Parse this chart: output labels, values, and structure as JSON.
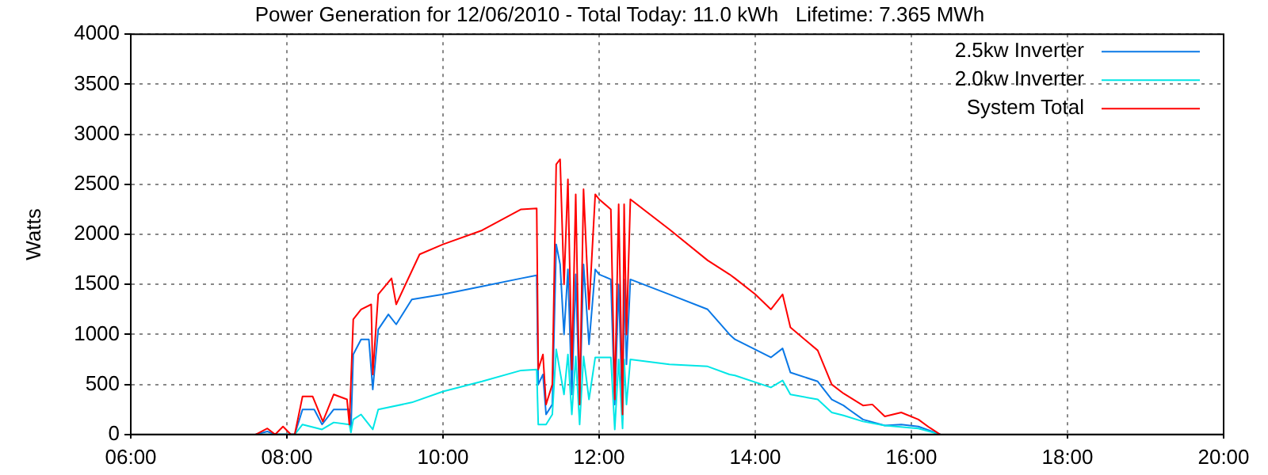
{
  "chart_data": {
    "type": "line",
    "title": "Power Generation for 12/06/2010 - Total Today: 11.0 kWh   Lifetime: 7.365 MWh",
    "ylabel": "Watts",
    "xlim": [
      6,
      20
    ],
    "xticks": [
      {
        "value": 6,
        "label": "06:00"
      },
      {
        "value": 8,
        "label": "08:00"
      },
      {
        "value": 10,
        "label": "10:00"
      },
      {
        "value": 12,
        "label": "12:00"
      },
      {
        "value": 14,
        "label": "14:00"
      },
      {
        "value": 16,
        "label": "16:00"
      },
      {
        "value": 18,
        "label": "18:00"
      },
      {
        "value": 20,
        "label": "20:00"
      }
    ],
    "ylim": [
      0,
      4000
    ],
    "yticks": [
      0,
      500,
      1000,
      1500,
      2000,
      2500,
      3000,
      3500,
      4000
    ],
    "grid": true,
    "legend": "top right",
    "marker": "none",
    "line_style": "solid",
    "series": [
      {
        "name": "2.5kw Inverter",
        "color": "#0a78e6",
        "x": [
          7.6,
          7.75,
          7.85,
          8.1,
          8.2,
          8.35,
          8.45,
          8.6,
          8.8,
          8.82,
          8.85,
          8.95,
          9.05,
          9.1,
          9.17,
          9.3,
          9.4,
          9.6,
          10.0,
          10.5,
          11.0,
          11.2,
          11.22,
          11.28,
          11.32,
          11.4,
          11.45,
          11.5,
          11.55,
          11.6,
          11.65,
          11.7,
          11.75,
          11.8,
          11.87,
          11.95,
          12.0,
          12.15,
          12.2,
          12.25,
          12.3,
          12.32,
          12.35,
          12.4,
          12.9,
          13.39,
          13.67,
          13.74,
          14.2,
          14.35,
          14.45,
          14.8,
          14.98,
          15.13,
          15.2,
          15.38,
          15.66,
          15.87,
          16.09,
          16.23,
          16.37
        ],
        "values": [
          0,
          30,
          0,
          0,
          250,
          250,
          100,
          250,
          250,
          50,
          800,
          950,
          950,
          450,
          1050,
          1200,
          1100,
          1350,
          1400,
          1480,
          1560,
          1590,
          500,
          600,
          200,
          300,
          1900,
          1700,
          1000,
          1650,
          400,
          1600,
          300,
          1700,
          900,
          1650,
          1600,
          1550,
          300,
          1500,
          150,
          1550,
          700,
          1550,
          1400,
          1250,
          1000,
          950,
          770,
          860,
          620,
          530,
          350,
          290,
          250,
          150,
          90,
          100,
          80,
          40,
          0
        ]
      },
      {
        "name": "2.0kw Inverter",
        "color": "#00e6e6",
        "x": [
          7.6,
          7.85,
          8.1,
          8.2,
          8.45,
          8.6,
          8.8,
          8.82,
          8.85,
          8.95,
          9.1,
          9.17,
          9.6,
          10.0,
          10.5,
          11.0,
          11.2,
          11.22,
          11.32,
          11.4,
          11.45,
          11.55,
          11.6,
          11.65,
          11.7,
          11.75,
          11.8,
          11.87,
          11.95,
          12.0,
          12.15,
          12.2,
          12.25,
          12.3,
          12.32,
          12.35,
          12.4,
          12.9,
          13.39,
          13.67,
          13.74,
          14.2,
          14.35,
          14.45,
          14.8,
          14.98,
          15.13,
          15.38,
          15.66,
          16.09,
          16.23,
          16.37
        ],
        "values": [
          0,
          0,
          0,
          100,
          50,
          120,
          100,
          20,
          150,
          200,
          50,
          250,
          320,
          430,
          530,
          640,
          650,
          100,
          100,
          200,
          850,
          400,
          800,
          200,
          780,
          100,
          780,
          350,
          770,
          770,
          770,
          50,
          750,
          60,
          750,
          300,
          750,
          700,
          680,
          600,
          590,
          470,
          540,
          400,
          350,
          220,
          190,
          130,
          90,
          60,
          30,
          0
        ]
      },
      {
        "name": "System Total",
        "color": "#ff0000",
        "x": [
          7.6,
          7.75,
          7.85,
          7.95,
          8.05,
          8.1,
          8.2,
          8.33,
          8.46,
          8.6,
          8.77,
          8.8,
          8.85,
          8.95,
          9.08,
          9.1,
          9.17,
          9.34,
          9.4,
          9.7,
          10.0,
          10.5,
          11.0,
          11.2,
          11.22,
          11.28,
          11.32,
          11.4,
          11.45,
          11.5,
          11.55,
          11.6,
          11.65,
          11.7,
          11.75,
          11.8,
          11.87,
          11.95,
          12.0,
          12.15,
          12.2,
          12.25,
          12.3,
          12.32,
          12.35,
          12.4,
          12.9,
          13.39,
          13.67,
          13.74,
          14.0,
          14.2,
          14.35,
          14.45,
          14.8,
          14.98,
          15.13,
          15.38,
          15.5,
          15.66,
          15.87,
          16.09,
          16.23,
          16.37
        ],
        "values": [
          0,
          60,
          0,
          80,
          0,
          0,
          380,
          380,
          130,
          400,
          350,
          100,
          1150,
          1250,
          1300,
          600,
          1400,
          1560,
          1300,
          1800,
          1900,
          2040,
          2250,
          2260,
          650,
          800,
          300,
          500,
          2700,
          2750,
          1500,
          2550,
          650,
          2400,
          300,
          2450,
          1250,
          2400,
          2350,
          2250,
          350,
          2300,
          200,
          2300,
          1000,
          2350,
          2050,
          1740,
          1600,
          1560,
          1400,
          1250,
          1400,
          1070,
          840,
          500,
          410,
          290,
          300,
          180,
          220,
          150,
          70,
          0
        ]
      }
    ]
  }
}
